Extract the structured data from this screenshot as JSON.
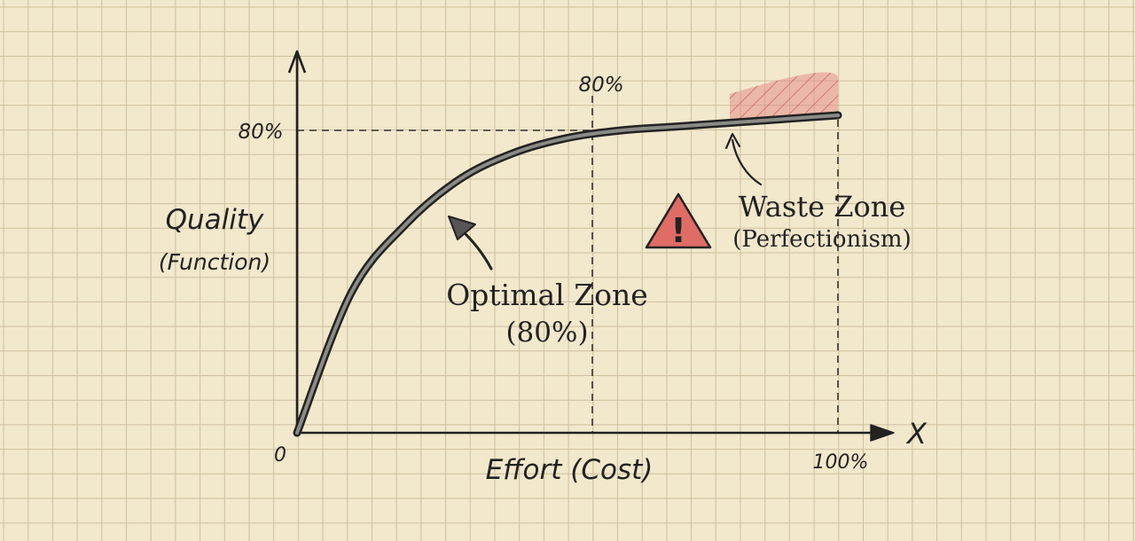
{
  "colors": {
    "paper": "#f2e8cc",
    "grid": "#cdbf9c",
    "ink": "#222222",
    "waste_fill": "#e58e88",
    "warning_fill": "#e06c66"
  },
  "labels": {
    "y_title": "Quality",
    "y_subtitle": "(Function)",
    "x_title": "Effort (Cost)",
    "origin": "0",
    "x_axis_letter": "X",
    "x_end": "100%",
    "y_marker": "80%",
    "x_marker": "80%",
    "optimal_title": "Optimal Zone",
    "optimal_sub": "(80%)",
    "waste_title": "Waste Zone",
    "waste_sub": "(Perfectionism)",
    "warning_mark": "!"
  },
  "icons": {
    "warning": "warning-triangle-icon"
  },
  "curve": {
    "x_percent": [
      0,
      10,
      20,
      30,
      40,
      50,
      60,
      70,
      80,
      90,
      100
    ],
    "y_percent": [
      0,
      37,
      55,
      67,
      74,
      78,
      80,
      81,
      82,
      83,
      84
    ]
  }
}
